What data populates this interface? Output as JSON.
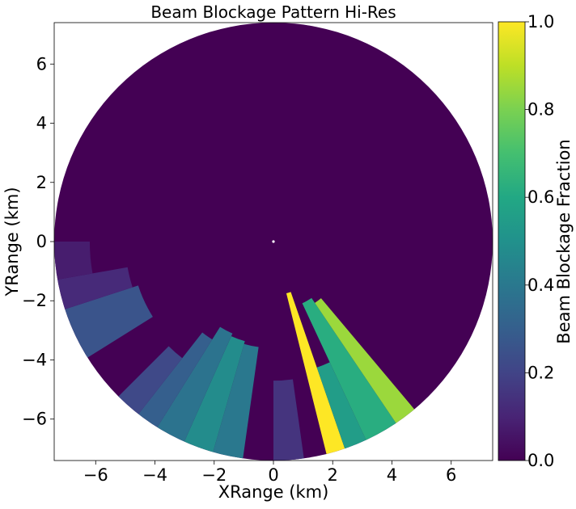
{
  "chart_data": {
    "type": "heatmap",
    "title": "Beam Blockage Pattern Hi-Res",
    "xlabel": "XRange (km)",
    "ylabel": "YRange (km)",
    "xlim": [
      -7.4,
      7.4
    ],
    "ylim": [
      -7.4,
      7.4
    ],
    "x_ticks": [
      -6,
      -4,
      -2,
      0,
      2,
      4,
      6
    ],
    "y_ticks": [
      -6,
      -4,
      -2,
      0,
      2,
      4,
      6
    ],
    "grid": false,
    "max_range_km": 7.4,
    "colorbar": {
      "label": "Beam Blockage Fraction",
      "range": [
        0.0,
        1.0
      ],
      "ticks": [
        0.0,
        0.2,
        0.4,
        0.6,
        0.8,
        1.0
      ],
      "tick_labels": [
        "0.0",
        "0.2",
        "0.4",
        "0.6",
        "0.8",
        "1.0"
      ],
      "colormap": "viridis"
    },
    "background_value": 0.0,
    "blockage_sectors": [
      {
        "az_start": 161,
        "az_end": 166,
        "r_start": 1.8,
        "value": 1.0
      },
      {
        "az_start": 155,
        "az_end": 161,
        "r_start": 4.5,
        "value": 0.55
      },
      {
        "az_start": 146,
        "az_end": 155,
        "r_start": 2.3,
        "value": 0.62
      },
      {
        "az_start": 140,
        "az_end": 146,
        "r_start": 2.5,
        "value": 0.85
      },
      {
        "az_start": 172,
        "az_end": 180,
        "r_start": 4.7,
        "value": 0.15
      },
      {
        "az_start": 188,
        "az_end": 196,
        "r_start": 3.6,
        "value": 0.4
      },
      {
        "az_start": 196,
        "az_end": 204,
        "r_start": 3.5,
        "value": 0.48
      },
      {
        "az_start": 204,
        "az_end": 212,
        "r_start": 3.4,
        "value": 0.38
      },
      {
        "az_start": 212,
        "az_end": 218,
        "r_start": 3.9,
        "value": 0.3
      },
      {
        "az_start": 218,
        "az_end": 225,
        "r_start": 5.0,
        "value": 0.22
      },
      {
        "az_start": 238,
        "az_end": 252,
        "r_start": 4.8,
        "value": 0.26
      },
      {
        "az_start": 252,
        "az_end": 260,
        "r_start": 5.0,
        "value": 0.12
      },
      {
        "az_start": 260,
        "az_end": 270,
        "r_start": 6.2,
        "value": 0.08
      }
    ]
  }
}
